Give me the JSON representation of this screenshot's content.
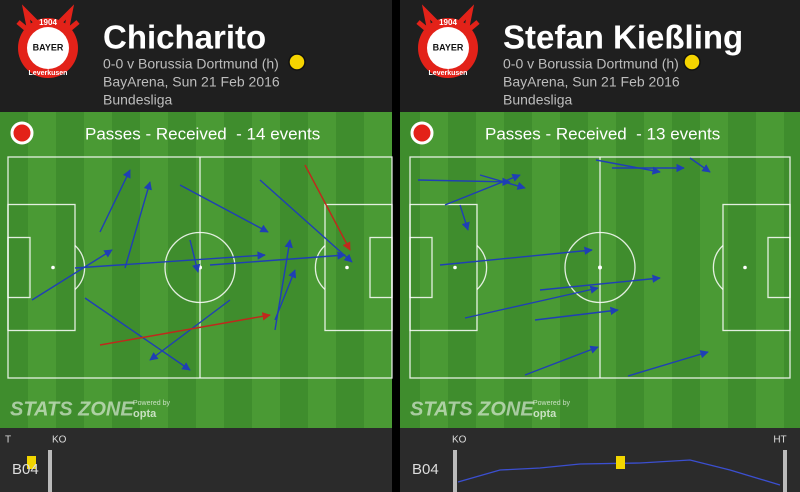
{
  "panels": [
    {
      "badge": {
        "year": "1904",
        "name": "BAYER",
        "city": "Leverkusen"
      },
      "player": "Chicharito",
      "match": "0-0 v Borussia Dortmund (h)",
      "venue": "BayArena, Sun 21 Feb 2016",
      "competition": "Bundesliga",
      "pitch_title": "Passes - Received  - 14 events",
      "brand": "STATS ZONE",
      "powered_by": "Powered by",
      "provider": "opta",
      "timeline": {
        "labels": [
          "T",
          "KO"
        ],
        "team": "B04"
      }
    },
    {
      "badge": {
        "year": "1904",
        "name": "BAYER",
        "city": "Leverkusen"
      },
      "player": "Stefan Kießling",
      "match": "0-0 v Borussia Dortmund (h)",
      "venue": "BayArena, Sun 21 Feb 2016",
      "competition": "Bundesliga",
      "pitch_title": "Passes - Received  - 13 events",
      "brand": "STATS ZONE",
      "powered_by": "Powered by",
      "provider": "opta",
      "timeline": {
        "labels": [
          "KO",
          "HT"
        ],
        "team": "B04"
      }
    }
  ]
}
